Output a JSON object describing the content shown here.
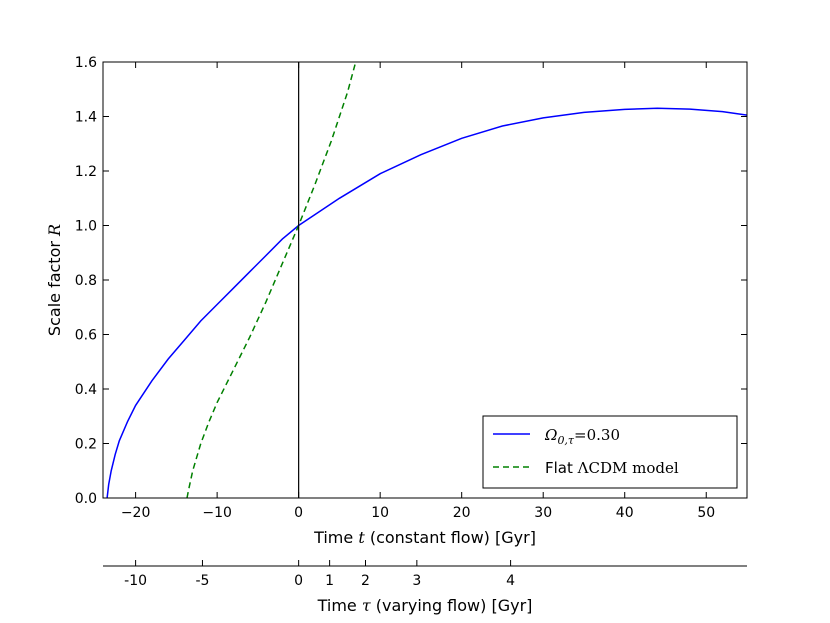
{
  "chart_data": {
    "type": "line",
    "xlim": [
      -24,
      55
    ],
    "ylim": [
      0,
      1.6
    ],
    "xticks": [
      -20,
      -10,
      0,
      10,
      20,
      30,
      40,
      50
    ],
    "xtick_labels": [
      "−20",
      "−10",
      "0",
      "10",
      "20",
      "30",
      "40",
      "50"
    ],
    "yticks": [
      0.0,
      0.2,
      0.4,
      0.6,
      0.8,
      1.0,
      1.2,
      1.4,
      1.6
    ],
    "ytick_labels": [
      "0.0",
      "0.2",
      "0.4",
      "0.6",
      "0.8",
      "1.0",
      "1.2",
      "1.4",
      "1.6"
    ],
    "xlabel": {
      "prefix": "Time ",
      "symbol": "t",
      "suffix": " (constant flow) [Gyr]"
    },
    "ylabel": {
      "prefix": "Scale factor ",
      "symbol": "R"
    },
    "vertical_line_x": 0,
    "grid": false,
    "legend_position": "lower-right",
    "series": [
      {
        "name": "Ω₀,τ=0.30",
        "legend": {
          "base": "Ω",
          "sub": "0,τ",
          "rest": "=0.30"
        },
        "color": "#0000ff",
        "dash": "solid",
        "x": [
          -23.5,
          -23.3,
          -23,
          -22.5,
          -22,
          -21,
          -20,
          -18,
          -16,
          -14,
          -12,
          -10,
          -8,
          -6,
          -4,
          -2,
          0,
          2,
          5,
          10,
          15,
          20,
          25,
          30,
          35,
          40,
          44,
          48,
          52,
          55
        ],
        "y": [
          0.0,
          0.05,
          0.1,
          0.16,
          0.21,
          0.28,
          0.34,
          0.43,
          0.51,
          0.58,
          0.65,
          0.71,
          0.77,
          0.83,
          0.89,
          0.95,
          1.0,
          1.04,
          1.1,
          1.19,
          1.26,
          1.32,
          1.365,
          1.395,
          1.415,
          1.426,
          1.43,
          1.427,
          1.418,
          1.405
        ]
      },
      {
        "name": "Flat ΛCDM model",
        "legend": {
          "base": "Flat ",
          "sub": "",
          "rest": "ΛCDM model"
        },
        "color": "#008000",
        "dash": "dashed",
        "x": [
          -13.7,
          -13.5,
          -13,
          -12,
          -11,
          -10,
          -8,
          -6,
          -4,
          -2,
          0,
          2,
          4,
          6,
          7
        ],
        "y": [
          0.0,
          0.03,
          0.1,
          0.2,
          0.28,
          0.35,
          0.47,
          0.59,
          0.72,
          0.86,
          1.0,
          1.15,
          1.31,
          1.49,
          1.6
        ]
      }
    ],
    "secondary_axis": {
      "label": {
        "prefix": "Time ",
        "symbol": "τ",
        "suffix": " (varying flow) [Gyr]"
      },
      "ticks": [
        {
          "label": "-10",
          "at_t": -20
        },
        {
          "label": "-5",
          "at_t": -11.8
        },
        {
          "label": "0",
          "at_t": 0
        },
        {
          "label": "1",
          "at_t": 3.8
        },
        {
          "label": "2",
          "at_t": 8.2
        },
        {
          "label": "3",
          "at_t": 14.5
        },
        {
          "label": "4",
          "at_t": 26
        }
      ]
    }
  }
}
